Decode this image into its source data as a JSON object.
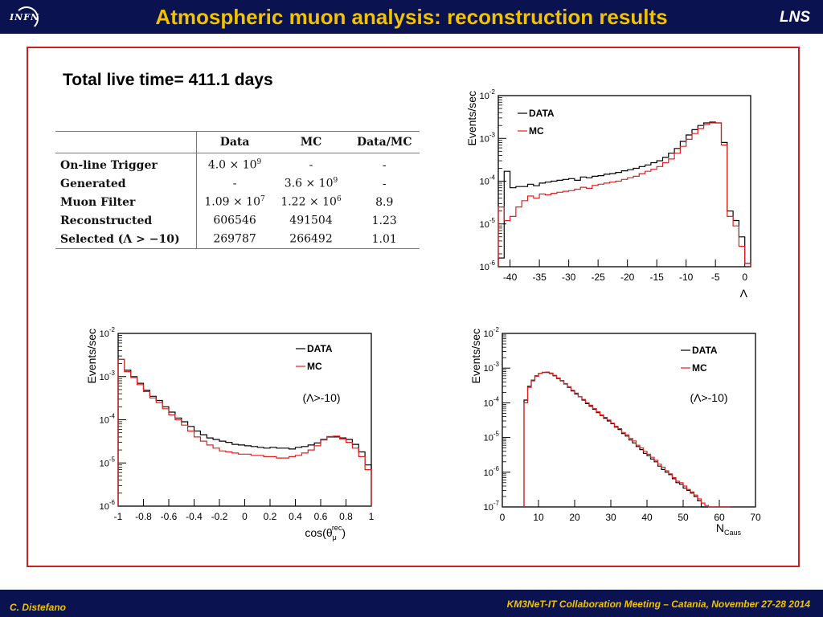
{
  "header": {
    "title": "Atmospheric muon analysis: reconstruction results",
    "logo": "INFN",
    "lab": "LNS"
  },
  "footer": {
    "author": "C. Distefano",
    "meeting": "KM3NeT-IT Collaboration Meeting – Catania, November 27-28 2014"
  },
  "colors": {
    "header_bg": "#0b1250",
    "title": "#f2c200",
    "frame": "#cc1f1f",
    "data_line": "#000000",
    "mc_line": "#e0201c"
  },
  "live_time": "Total live time= 411.1 days",
  "table": {
    "headers": [
      "",
      "Data",
      "MC",
      "Data/MC"
    ],
    "rows": [
      {
        "label": "On-line Trigger",
        "data_m": "4.0 × 10",
        "data_e": "9",
        "mc_m": "-",
        "mc_e": "",
        "ratio": "-"
      },
      {
        "label": "Generated",
        "data_m": "-",
        "data_e": "",
        "mc_m": "3.6 × 10",
        "mc_e": "9",
        "ratio": "-"
      },
      {
        "label": "Muon Filter",
        "data_m": "1.09 × 10",
        "data_e": "7",
        "mc_m": "1.22 × 10",
        "mc_e": "6",
        "ratio": "8.9"
      },
      {
        "label": "Reconstructed",
        "data_m": "606546",
        "data_e": "",
        "mc_m": "491504",
        "mc_e": "",
        "ratio": "1.23"
      },
      {
        "label": "Selected (Λ > −10)",
        "data_m": "269787",
        "data_e": "",
        "mc_m": "266492",
        "mc_e": "",
        "ratio": "1.01"
      }
    ]
  },
  "chart_data": [
    {
      "id": "lambda",
      "type": "line",
      "ylabel": "Events/sec",
      "xlabel": "Λ",
      "xlim": [
        -42,
        1
      ],
      "ylog": true,
      "ylim_exp": [
        -6,
        -2
      ],
      "xticks": [
        -40,
        -35,
        -30,
        -25,
        -20,
        -15,
        -10,
        -5,
        0
      ],
      "legend": [
        "DATA",
        "MC"
      ],
      "legend_position": "top-left",
      "series": [
        {
          "name": "DATA",
          "x": [
            -42,
            -41,
            -40,
            -39,
            -38,
            -37,
            -36,
            -35,
            -34,
            -33,
            -32,
            -31,
            -30,
            -29,
            -28,
            -27,
            -26,
            -25,
            -24,
            -23,
            -22,
            -21,
            -20,
            -19,
            -18,
            -17,
            -16,
            -15,
            -14,
            -13,
            -12,
            -11,
            -10,
            -9,
            -8,
            -7,
            -6,
            -5,
            -4,
            -3,
            -2,
            -1,
            0
          ],
          "y": [
            1.6e-06,
            0.00017,
            7e-05,
            7.5e-05,
            7.5e-05,
            8.5e-05,
            7.8e-05,
            9e-05,
            9.5e-05,
            0.0001,
            0.000105,
            0.00011,
            0.000115,
            0.000105,
            0.000125,
            0.00012,
            0.00013,
            0.000135,
            0.000145,
            0.00015,
            0.00016,
            0.000175,
            0.000185,
            0.0002,
            0.00022,
            0.00024,
            0.00027,
            0.0003,
            0.00036,
            0.00045,
            0.00058,
            0.00085,
            0.0012,
            0.0016,
            0.002,
            0.0023,
            0.0024,
            0.0023,
            0.0008,
            2e-05,
            1.2e-05,
            5e-06,
            1.2e-06
          ]
        },
        {
          "name": "MC",
          "x": [
            -42,
            -41,
            -40,
            -39,
            -38,
            -37,
            -36,
            -35,
            -34,
            -33,
            -32,
            -31,
            -30,
            -29,
            -28,
            -27,
            -26,
            -25,
            -24,
            -23,
            -22,
            -21,
            -20,
            -19,
            -18,
            -17,
            -16,
            -15,
            -14,
            -13,
            -12,
            -11,
            -10,
            -9,
            -8,
            -7,
            -6,
            -5,
            -4,
            -3,
            -2,
            -1,
            0
          ],
          "y": [
            2.5e-05,
            1.2e-05,
            1.5e-05,
            2.5e-05,
            3.5e-05,
            4.5e-05,
            4e-05,
            5e-05,
            4.8e-05,
            5.2e-05,
            5.5e-05,
            5.8e-05,
            6e-05,
            6.5e-05,
            7.2e-05,
            6.8e-05,
            8e-05,
            8.5e-05,
            9e-05,
            9.5e-05,
            0.0001,
            0.00011,
            0.00012,
            0.00013,
            0.00015,
            0.00017,
            0.00019,
            0.00022,
            0.00027,
            0.00033,
            0.00045,
            0.00065,
            0.00095,
            0.0013,
            0.0017,
            0.0021,
            0.0023,
            0.0023,
            0.0007,
            1.5e-05,
            9e-06,
            3e-06,
            1.2e-06
          ]
        }
      ]
    },
    {
      "id": "costheta",
      "type": "line",
      "ylabel": "Events/sec",
      "xlabel": "cos(θ",
      "xlabel_sup": "rec",
      "xlabel_sub": "μ",
      "xlabel_end": ")",
      "annotation": "(Λ>-10)",
      "xlim": [
        -1,
        1
      ],
      "ylog": true,
      "ylim_exp": [
        -6,
        -2
      ],
      "xticks": [
        -1,
        -0.8,
        -0.6,
        -0.4,
        -0.2,
        0,
        0.2,
        0.4,
        0.6,
        0.8,
        1
      ],
      "legend": [
        "DATA",
        "MC"
      ],
      "legend_position": "top-right",
      "series": [
        {
          "name": "DATA",
          "x": [
            -1,
            -0.95,
            -0.9,
            -0.85,
            -0.8,
            -0.75,
            -0.7,
            -0.65,
            -0.6,
            -0.55,
            -0.5,
            -0.45,
            -0.4,
            -0.35,
            -0.3,
            -0.25,
            -0.2,
            -0.15,
            -0.1,
            -0.05,
            0,
            0.05,
            0.1,
            0.15,
            0.2,
            0.25,
            0.3,
            0.35,
            0.4,
            0.45,
            0.5,
            0.55,
            0.6,
            0.65,
            0.7,
            0.75,
            0.8,
            0.85,
            0.9,
            0.95,
            1
          ],
          "y": [
            0.0025,
            0.0014,
            0.001,
            0.0007,
            0.00048,
            0.00035,
            0.00028,
            0.0002,
            0.00015,
            0.00011,
            9e-05,
            7e-05,
            5.5e-05,
            4.5e-05,
            3.8e-05,
            3.5e-05,
            3.2e-05,
            3e-05,
            2.7e-05,
            2.6e-05,
            2.5e-05,
            2.4e-05,
            2.3e-05,
            2.2e-05,
            2.3e-05,
            2.2e-05,
            2.2e-05,
            2.1e-05,
            2.3e-05,
            2.4e-05,
            2.6e-05,
            2.9e-05,
            3.5e-05,
            4e-05,
            4e-05,
            3.8e-05,
            3.5e-05,
            2.7e-05,
            1.8e-05,
            9e-06,
            9e-06
          ]
        },
        {
          "name": "MC",
          "x": [
            -1,
            -0.95,
            -0.9,
            -0.85,
            -0.8,
            -0.75,
            -0.7,
            -0.65,
            -0.6,
            -0.55,
            -0.5,
            -0.45,
            -0.4,
            -0.35,
            -0.3,
            -0.25,
            -0.2,
            -0.15,
            -0.1,
            -0.05,
            0,
            0.05,
            0.1,
            0.15,
            0.2,
            0.25,
            0.3,
            0.35,
            0.4,
            0.45,
            0.5,
            0.55,
            0.6,
            0.65,
            0.7,
            0.75,
            0.8,
            0.85,
            0.9,
            0.95,
            1
          ],
          "y": [
            0.0025,
            0.0013,
            0.00095,
            0.00065,
            0.00045,
            0.00032,
            0.00025,
            0.00018,
            0.00013,
            0.0001,
            7.5e-05,
            5.5e-05,
            4e-05,
            3.2e-05,
            2.6e-05,
            2.2e-05,
            1.9e-05,
            1.8e-05,
            1.7e-05,
            1.6e-05,
            1.6e-05,
            1.5e-05,
            1.5e-05,
            1.4e-05,
            1.4e-05,
            1.3e-05,
            1.3e-05,
            1.4e-05,
            1.5e-05,
            1.7e-05,
            2e-05,
            2.5e-05,
            3.4e-05,
            4.1e-05,
            4.2e-05,
            3.6e-05,
            3e-05,
            2.2e-05,
            1.4e-05,
            7e-06,
            7e-06
          ]
        }
      ]
    },
    {
      "id": "ncaus",
      "type": "line",
      "ylabel": "Events/sec",
      "xlabel": "N",
      "xlabel_sub": "Caus",
      "annotation": "(Λ>-10)",
      "xlim": [
        0,
        70
      ],
      "ylog": true,
      "ylim_exp": [
        -7,
        -2
      ],
      "xticks": [
        0,
        10,
        20,
        30,
        40,
        50,
        60,
        70
      ],
      "legend": [
        "DATA",
        "MC"
      ],
      "legend_position": "top-right",
      "series": [
        {
          "name": "DATA",
          "x": [
            6,
            7,
            8,
            9,
            10,
            11,
            12,
            13,
            14,
            15,
            16,
            17,
            18,
            19,
            20,
            21,
            22,
            23,
            24,
            25,
            26,
            27,
            28,
            29,
            30,
            31,
            32,
            33,
            34,
            35,
            36,
            37,
            38,
            39,
            40,
            41,
            42,
            43,
            44,
            45,
            46,
            47,
            48,
            49,
            50,
            51,
            52,
            53,
            54,
            55,
            56,
            57,
            58,
            59,
            60,
            61,
            62
          ],
          "y": [
            0.00012,
            0.0003,
            0.00045,
            0.0006,
            0.0007,
            0.00075,
            0.00075,
            0.0007,
            0.0006,
            0.0005,
            0.00043,
            0.00035,
            0.00028,
            0.00022,
            0.00018,
            0.00015,
            0.00012,
            9.5e-05,
            8e-05,
            6.5e-05,
            5.2e-05,
            4.3e-05,
            3.6e-05,
            3e-05,
            2.5e-05,
            2e-05,
            1.7e-05,
            1.3e-05,
            1.1e-05,
            8.5e-06,
            7e-06,
            5.5e-06,
            4.5e-06,
            3.5e-06,
            3e-06,
            2.4e-06,
            2e-06,
            1.5e-06,
            1.2e-06,
            1e-06,
            8.5e-07,
            6.5e-07,
            5e-07,
            4.5e-07,
            3.5e-07,
            3e-07,
            2.5e-07,
            2e-07,
            1.5e-07,
            1e-07,
            1e-07,
            1e-07,
            1e-07,
            1e-07,
            1e-07,
            1e-07,
            1e-07
          ]
        },
        {
          "name": "MC",
          "x": [
            6,
            7,
            8,
            9,
            10,
            11,
            12,
            13,
            14,
            15,
            16,
            17,
            18,
            19,
            20,
            21,
            22,
            23,
            24,
            25,
            26,
            27,
            28,
            29,
            30,
            31,
            32,
            33,
            34,
            35,
            36,
            37,
            38,
            39,
            40,
            41,
            42,
            43,
            44,
            45,
            46,
            47,
            48,
            49,
            50,
            51,
            52,
            53,
            54,
            55,
            56,
            57,
            58,
            59,
            60,
            61,
            62
          ],
          "y": [
            0.0001,
            0.00028,
            0.00043,
            0.00058,
            0.0007,
            0.00076,
            0.00077,
            0.00072,
            0.00062,
            0.00052,
            0.00044,
            0.00036,
            0.00029,
            0.00023,
            0.00019,
            0.00015,
            0.000125,
            0.0001,
            8.5e-05,
            6.8e-05,
            5.5e-05,
            4.5e-05,
            3.8e-05,
            3.2e-05,
            2.6e-05,
            2.1e-05,
            1.8e-05,
            1.4e-05,
            1.2e-05,
            9.5e-06,
            8e-06,
            6e-06,
            5e-06,
            4e-06,
            3.3e-06,
            2.7e-06,
            2.2e-06,
            1.7e-06,
            1.4e-06,
            1.1e-06,
            9e-07,
            7e-07,
            5.5e-07,
            5e-07,
            4e-07,
            3.2e-07,
            2.7e-07,
            2.2e-07,
            1.7e-07,
            1.3e-07,
            1.1e-07,
            1e-07,
            1e-07,
            1e-07,
            1e-07,
            1e-07,
            1e-07
          ]
        }
      ]
    }
  ]
}
